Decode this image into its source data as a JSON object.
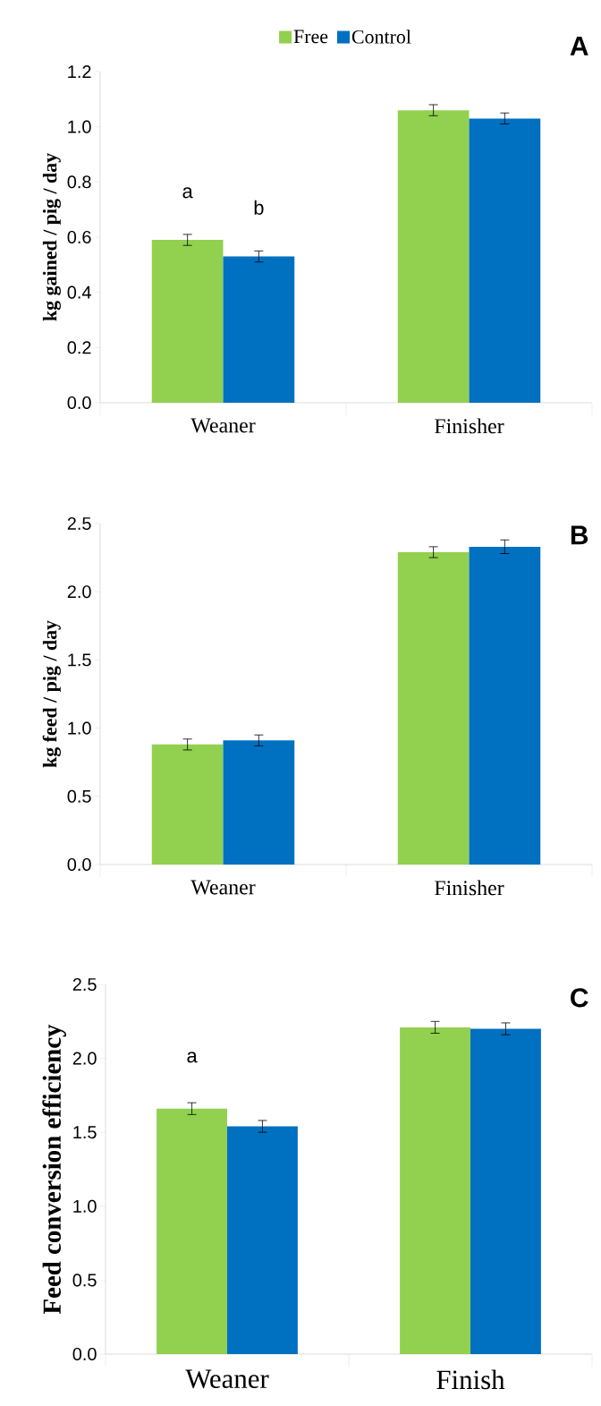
{
  "chart_data": [
    {
      "type": "bar",
      "title": "A",
      "ylabel": "kg gained / pig / day",
      "categories": [
        "Weaner",
        "Finisher"
      ],
      "legend": "top",
      "series": [
        {
          "name": "Free",
          "color": "#92d050",
          "values": [
            0.59,
            1.06
          ],
          "errors": [
            0.02,
            0.02
          ]
        },
        {
          "name": "Control",
          "color": "#0070c0",
          "values": [
            0.53,
            1.03
          ],
          "errors": [
            0.02,
            0.02
          ]
        }
      ],
      "ylim": [
        0,
        1.2
      ],
      "yticks": [
        {
          "value": 0,
          "label": "0.0"
        },
        {
          "value": 0.2,
          "label": "0.2"
        },
        {
          "value": 0.4,
          "label": "0.4"
        },
        {
          "value": 0.6,
          "label": "0.6"
        },
        {
          "value": 0.8,
          "label": "0.8"
        },
        {
          "value": 1.0,
          "label": "1.0"
        },
        {
          "value": 1.2,
          "label": "1.2"
        }
      ],
      "annotations": [
        "a",
        "b"
      ]
    },
    {
      "type": "bar",
      "title": "B",
      "ylabel": "kg feed / pig / day",
      "categories": [
        "Weaner",
        "Finisher"
      ],
      "series": [
        {
          "color": "#92d050",
          "values": [
            0.88,
            2.29
          ],
          "errors": [
            0.04,
            0.04
          ]
        },
        {
          "color": "#0070c0",
          "values": [
            0.91,
            2.33
          ],
          "errors": [
            0.04,
            0.05
          ]
        }
      ],
      "ylim": [
        0,
        2.5
      ],
      "yticks": [
        {
          "value": 0,
          "label": "0.0"
        },
        {
          "value": 0.5,
          "label": "0.5"
        },
        {
          "value": 1.0,
          "label": "1.0"
        },
        {
          "value": 1.5,
          "label": "1.5"
        },
        {
          "value": 2.0,
          "label": "2.0"
        },
        {
          "value": 2.5,
          "label": "2.5"
        }
      ]
    },
    {
      "type": "bar",
      "title": "C",
      "ylabel": "Feed conversion efficiency",
      "categories": [
        "Weaner",
        "Finish"
      ],
      "series": [
        {
          "color": "#92d050",
          "values": [
            1.66,
            2.21
          ],
          "errors": [
            0.04,
            0.04
          ]
        },
        {
          "color": "#0070c0",
          "values": [
            1.54,
            2.2
          ],
          "errors": [
            0.04,
            0.04
          ]
        }
      ],
      "ylim": [
        0,
        2.5
      ],
      "yticks": [
        {
          "value": 0,
          "label": "0.0"
        },
        {
          "value": 0.5,
          "label": "0.5"
        },
        {
          "value": 1.0,
          "label": "1.0"
        },
        {
          "value": 1.5,
          "label": "1.5"
        },
        {
          "value": 2.0,
          "label": "2.0"
        },
        {
          "value": 2.5,
          "label": "2.5"
        }
      ],
      "annotations": [
        "a"
      ]
    }
  ]
}
